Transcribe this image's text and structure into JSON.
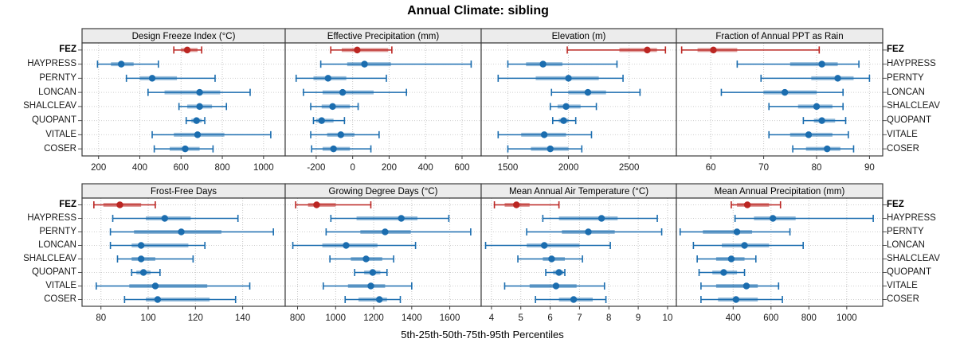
{
  "title": "Annual Climate: sibling",
  "xlabel": "5th-25th-50th-75th-95th Percentiles",
  "colors": {
    "highlight": "#bb2622",
    "normal": "#1b6daf",
    "strip_bg": "#ececec",
    "panel_border": "#3c3c3c",
    "grid": "#c6c6c6",
    "tick_text": "#1a1a1a"
  },
  "stations": [
    "FEZ",
    "HAYPRESS",
    "PERNTY",
    "LONCAN",
    "SHALCLEAV",
    "QUOPANT",
    "VITALE",
    "COSER"
  ],
  "highlight_station": "FEZ",
  "chart_data": {
    "type": "dotplot-percentiles",
    "percentile_labels": [
      "5th",
      "25th",
      "50th",
      "75th",
      "95th"
    ],
    "panels": [
      {
        "title": "Design Freeze Index (°C)",
        "xlim": [
          120,
          1105
        ],
        "ticks": [
          200,
          400,
          600,
          800,
          1000
        ],
        "values": {
          "FEZ": [
            565,
            600,
            630,
            680,
            700
          ],
          "HAYPRESS": [
            195,
            260,
            310,
            370,
            490
          ],
          "PERNTY": [
            335,
            400,
            460,
            580,
            765
          ],
          "LONCAN": [
            440,
            520,
            690,
            790,
            935
          ],
          "SHALCLEAV": [
            590,
            630,
            690,
            750,
            820
          ],
          "QUOPANT": [
            625,
            650,
            675,
            700,
            715
          ],
          "VITALE": [
            460,
            565,
            680,
            810,
            1035
          ],
          "COSER": [
            470,
            545,
            620,
            690,
            755
          ]
        }
      },
      {
        "title": "Effective Precipitation (mm)",
        "xlim": [
          -370,
          705
        ],
        "ticks": [
          -200,
          0,
          200,
          400,
          600
        ],
        "values": {
          "FEZ": [
            -120,
            -60,
            25,
            195,
            215
          ],
          "HAYPRESS": [
            -175,
            -30,
            65,
            210,
            650
          ],
          "PERNTY": [
            -310,
            -215,
            -135,
            -35,
            185
          ],
          "LONCAN": [
            -270,
            -165,
            -55,
            115,
            295
          ],
          "SHALCLEAV": [
            -230,
            -170,
            -110,
            -15,
            30
          ],
          "QUOPANT": [
            -215,
            -200,
            -170,
            -105,
            -45
          ],
          "VITALE": [
            -230,
            -140,
            -65,
            10,
            145
          ],
          "COSER": [
            -225,
            -165,
            -105,
            -15,
            100
          ]
        }
      },
      {
        "title": "Elevation (m)",
        "xlim": [
          1280,
          2890
        ],
        "ticks": [
          1500,
          2000,
          2500
        ],
        "values": {
          "FEZ": [
            1990,
            2420,
            2650,
            2730,
            2800
          ],
          "HAYPRESS": [
            1500,
            1650,
            1790,
            1950,
            2400
          ],
          "PERNTY": [
            1420,
            1730,
            2000,
            2250,
            2450
          ],
          "LONCAN": [
            1860,
            2000,
            2160,
            2310,
            2590
          ],
          "SHALCLEAV": [
            1850,
            1910,
            1980,
            2100,
            2230
          ],
          "QUOPANT": [
            1870,
            1920,
            1960,
            2000,
            2060
          ],
          "VITALE": [
            1420,
            1610,
            1800,
            1980,
            2190
          ],
          "COSER": [
            1500,
            1690,
            1850,
            2000,
            2110
          ]
        }
      },
      {
        "title": "Fraction of Annual PPT as Rain",
        "xlim": [
          53.5,
          92.5
        ],
        "ticks": [
          60,
          70,
          80,
          90
        ],
        "values": {
          "FEZ": [
            54.5,
            57.5,
            60.5,
            65,
            80.5
          ],
          "HAYPRESS": [
            65,
            75,
            81,
            84,
            88
          ],
          "PERNTY": [
            69.5,
            79,
            84,
            87,
            90
          ],
          "LONCAN": [
            62,
            70,
            74,
            80,
            85
          ],
          "SHALCLEAV": [
            71,
            76.5,
            80,
            83,
            85
          ],
          "QUOPANT": [
            77.5,
            79.5,
            81,
            83.5,
            85.5
          ],
          "VITALE": [
            71,
            75,
            78.5,
            83,
            86
          ],
          "COSER": [
            75.5,
            78,
            82,
            84.5,
            87
          ]
        }
      },
      {
        "title": "Frost-Free Days",
        "xlim": [
          72,
          158
        ],
        "ticks": [
          80,
          100,
          120,
          140
        ],
        "values": {
          "FEZ": [
            77,
            81,
            88,
            97,
            103
          ],
          "HAYPRESS": [
            85,
            99,
            107,
            118,
            138
          ],
          "PERNTY": [
            84,
            94,
            114,
            131,
            153
          ],
          "LONCAN": [
            84,
            93,
            97,
            117,
            124
          ],
          "SHALCLEAV": [
            87,
            93,
            97,
            103,
            119
          ],
          "QUOPANT": [
            93,
            95,
            98,
            101,
            105
          ],
          "VITALE": [
            78,
            92,
            103,
            125,
            143
          ],
          "COSER": [
            90,
            99,
            104,
            126,
            137
          ]
        }
      },
      {
        "title": "Growing Degree Days (°C)",
        "xlim": [
          735,
          1765
        ],
        "ticks": [
          800,
          1000,
          1200,
          1400,
          1600
        ],
        "values": {
          "FEZ": [
            790,
            855,
            900,
            1000,
            1185
          ],
          "HAYPRESS": [
            975,
            1110,
            1345,
            1430,
            1595
          ],
          "PERNTY": [
            950,
            1130,
            1260,
            1395,
            1710
          ],
          "LONCAN": [
            775,
            930,
            1055,
            1220,
            1420
          ],
          "SHALCLEAV": [
            970,
            1080,
            1160,
            1245,
            1305
          ],
          "QUOPANT": [
            1100,
            1150,
            1195,
            1235,
            1270
          ],
          "VITALE": [
            935,
            1065,
            1185,
            1260,
            1400
          ],
          "COSER": [
            1050,
            1120,
            1230,
            1270,
            1340
          ]
        }
      },
      {
        "title": "Mean Annual Air Temperature (°C)",
        "xlim": [
          3.65,
          10.3
        ],
        "ticks": [
          4,
          5,
          6,
          7,
          8,
          9,
          10
        ],
        "values": {
          "FEZ": [
            4.1,
            4.45,
            4.85,
            5.3,
            6.3
          ],
          "HAYPRESS": [
            5.75,
            6.3,
            7.75,
            8.3,
            9.65
          ],
          "PERNTY": [
            5.2,
            6.4,
            7.3,
            8.2,
            9.8
          ],
          "LONCAN": [
            3.8,
            5.2,
            5.8,
            7.0,
            8.05
          ],
          "SHALCLEAV": [
            4.9,
            5.75,
            6.05,
            6.5,
            7.1
          ],
          "QUOPANT": [
            5.85,
            6.1,
            6.3,
            6.45,
            6.5
          ],
          "VITALE": [
            4.45,
            5.3,
            6.2,
            6.9,
            7.85
          ],
          "COSER": [
            5.5,
            6.3,
            6.8,
            7.45,
            7.9
          ]
        }
      },
      {
        "title": "Mean Annual Precipitation (mm)",
        "xlim": [
          100,
          1190
        ],
        "ticks": [
          400,
          600,
          800,
          1000
        ],
        "values": {
          "FEZ": [
            390,
            420,
            475,
            590,
            650
          ],
          "HAYPRESS": [
            410,
            510,
            610,
            730,
            1140
          ],
          "PERNTY": [
            120,
            240,
            420,
            500,
            700
          ],
          "LONCAN": [
            190,
            340,
            460,
            590,
            770
          ],
          "SHALCLEAV": [
            210,
            310,
            390,
            460,
            520
          ],
          "QUOPANT": [
            220,
            290,
            350,
            420,
            460
          ],
          "VITALE": [
            230,
            310,
            470,
            530,
            640
          ],
          "COSER": [
            230,
            320,
            415,
            530,
            660
          ]
        }
      }
    ]
  }
}
